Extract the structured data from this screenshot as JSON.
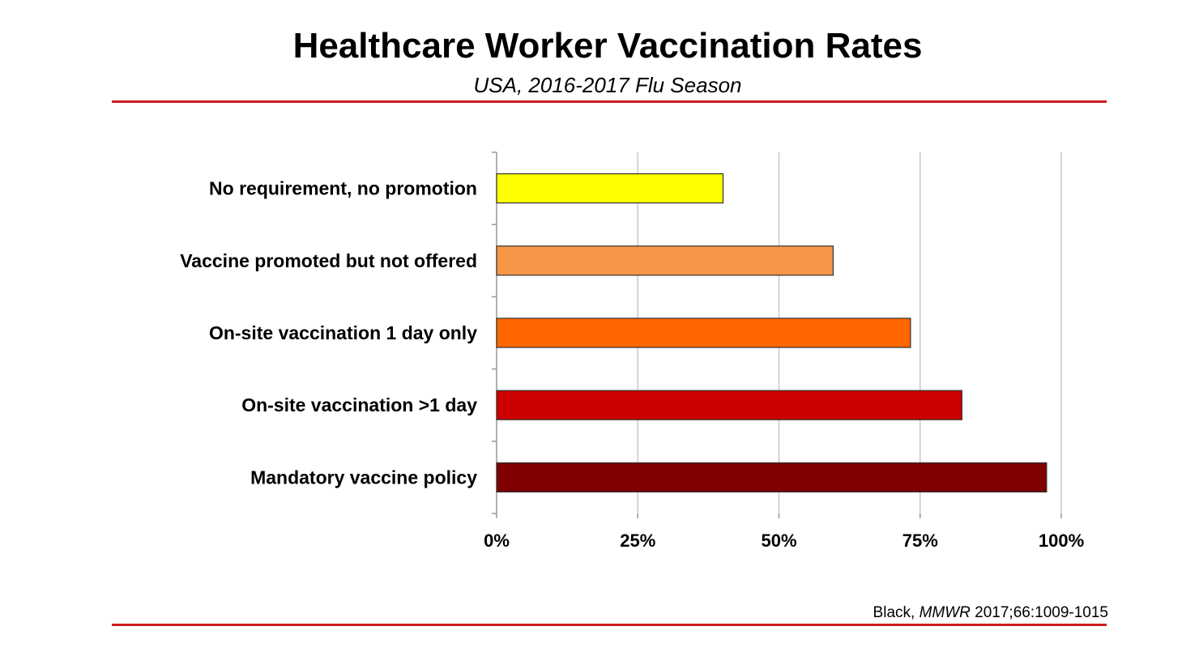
{
  "title": "Healthcare Worker Vaccination Rates",
  "subtitle": "USA, 2016-2017 Flu Season",
  "source": {
    "author": "Black, ",
    "journal": "MMWR",
    "ref": " 2017;66:1009-1015"
  },
  "colors": {
    "rule": "#cc1e1e",
    "grid": "#c8c8c8",
    "axis": "#999999",
    "bar_stroke": "#333333"
  },
  "chart_data": {
    "type": "bar",
    "orientation": "horizontal",
    "categories": [
      "No requirement, no promotion",
      "Vaccine promoted but not offered",
      "On-site vaccination 1 day only",
      "On-site vaccination >1 day",
      "Mandatory vaccine policy"
    ],
    "values": [
      40.1,
      59.6,
      73.3,
      82.4,
      97.4
    ],
    "bar_colors": [
      "#ffff00",
      "#f79646",
      "#ff6600",
      "#cc0000",
      "#7f0000"
    ],
    "x_ticks": [
      "0%",
      "25%",
      "50%",
      "75%",
      "100%"
    ],
    "xlim": [
      0,
      100
    ],
    "grid": true,
    "legend": "none"
  }
}
